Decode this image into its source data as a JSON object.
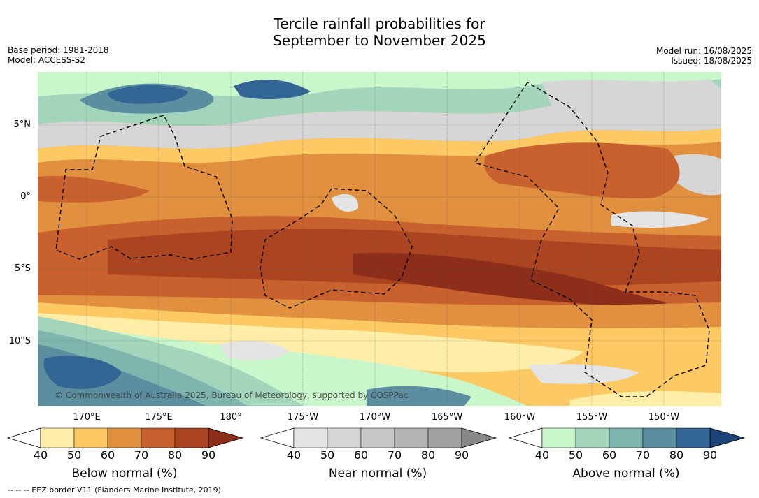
{
  "title": {
    "line1": "Tercile rainfall probabilities for",
    "line2": "September to November 2025"
  },
  "meta": {
    "base_period": "Base period: 1981-2018",
    "model": "Model: ACCESS-S2",
    "model_run": "Model run: 16/08/2025",
    "issued": "Issued: 18/08/2025"
  },
  "map": {
    "lat_labels": [
      "5°N",
      "0°",
      "5°S",
      "10°S"
    ],
    "lon_labels": [
      "170°E",
      "175°E",
      "180°",
      "175°W",
      "170°W",
      "165°W",
      "160°W",
      "155°W",
      "150°W"
    ],
    "copyright": "© Commonwealth of Australia 2025, Bureau of Meteorology, supported by COSPPac",
    "footnote": "--  --  -- EEZ border V11 (Flanders Marine Institute, 2019)."
  },
  "colorbars": [
    {
      "title": "Below normal (%)",
      "ticks": [
        "40",
        "50",
        "60",
        "70",
        "80",
        "90"
      ],
      "colors": [
        "#ffeea8",
        "#fdc964",
        "#e0903e",
        "#c8612e",
        "#ab4521",
        "#8c2e1a"
      ]
    },
    {
      "title": "Near normal (%)",
      "ticks": [
        "40",
        "50",
        "60",
        "70",
        "80",
        "90"
      ],
      "colors": [
        "#e4e4e4",
        "#d6d6d6",
        "#c8c8c8",
        "#b4b4b4",
        "#a2a2a2",
        "#888888"
      ]
    },
    {
      "title": "Above normal (%)",
      "ticks": [
        "40",
        "50",
        "60",
        "70",
        "80",
        "90"
      ],
      "colors": [
        "#c9f6cb",
        "#a2d5bc",
        "#7eb5ae",
        "#5b8fa0",
        "#336595",
        "#1d4477"
      ]
    }
  ]
}
